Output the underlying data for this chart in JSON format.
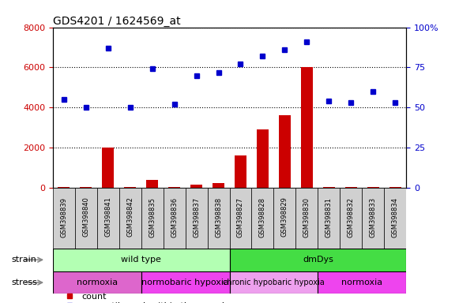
{
  "title": "GDS4201 / 1624569_at",
  "samples": [
    "GSM398839",
    "GSM398840",
    "GSM398841",
    "GSM398842",
    "GSM398835",
    "GSM398836",
    "GSM398837",
    "GSM398838",
    "GSM398827",
    "GSM398828",
    "GSM398829",
    "GSM398830",
    "GSM398831",
    "GSM398832",
    "GSM398833",
    "GSM398834"
  ],
  "counts": [
    50,
    50,
    2000,
    50,
    400,
    50,
    150,
    250,
    1600,
    2900,
    3600,
    6000,
    50,
    50,
    50,
    50
  ],
  "percentile_ranks": [
    55,
    50,
    87,
    50,
    74,
    52,
    70,
    72,
    77,
    82,
    86,
    91,
    54,
    53,
    60,
    53
  ],
  "bar_color": "#cc0000",
  "dot_color": "#0000cc",
  "left_yticks": [
    0,
    2000,
    4000,
    6000,
    8000
  ],
  "right_yticks": [
    0,
    25,
    50,
    75,
    100
  ],
  "left_ylim": [
    0,
    8000
  ],
  "right_ylim": [
    0,
    100
  ],
  "strain_labels": [
    {
      "label": "wild type",
      "start": 0,
      "end": 8,
      "color": "#b3ffb3"
    },
    {
      "label": "dmDys",
      "start": 8,
      "end": 16,
      "color": "#44dd44"
    }
  ],
  "stress_labels": [
    {
      "label": "normoxia",
      "start": 0,
      "end": 4,
      "color": "#dd66cc"
    },
    {
      "label": "normobaric hypoxia",
      "start": 4,
      "end": 8,
      "color": "#ee44ee"
    },
    {
      "label": "chronic hypobaric hypoxia",
      "start": 8,
      "end": 12,
      "color": "#eea0ee"
    },
    {
      "label": "normoxia",
      "start": 12,
      "end": 16,
      "color": "#ee44ee"
    }
  ],
  "tick_color_left": "#cc0000",
  "tick_color_right": "#0000cc",
  "xticklabel_bg": "#d0d0d0"
}
